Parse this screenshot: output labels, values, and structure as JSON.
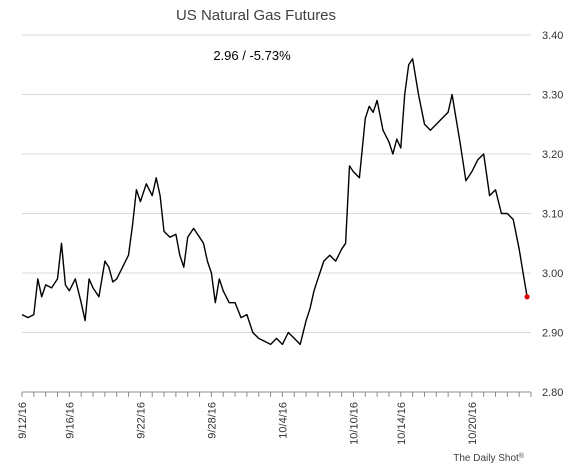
{
  "chart_data": {
    "type": "line",
    "title": "US Natural Gas Futures",
    "annotation": "2.96  /  -5.73%",
    "credit": "The Daily Shot",
    "credit_mark": "®",
    "xlabel": "",
    "ylabel": "",
    "ylim": [
      2.8,
      3.4
    ],
    "yticks": [
      "2.80",
      "2.90",
      "3.00",
      "3.10",
      "3.20",
      "3.30",
      "3.40"
    ],
    "xlim": [
      "2016-09-12",
      "2016-10-25"
    ],
    "xticks": [
      {
        "label": "9/12/16",
        "date": "2016-09-12"
      },
      {
        "label": "9/16/16",
        "date": "2016-09-16"
      },
      {
        "label": "9/22/16",
        "date": "2016-09-22"
      },
      {
        "label": "9/28/16",
        "date": "2016-09-28"
      },
      {
        "label": "10/4/16",
        "date": "2016-10-04"
      },
      {
        "label": "10/10/16",
        "date": "2016-10-10"
      },
      {
        "label": "10/14/16",
        "date": "2016-10-14"
      },
      {
        "label": "10/20/16",
        "date": "2016-10-20"
      }
    ],
    "grid": true,
    "y_axis_side": "right",
    "last_point_color": "#e00000",
    "series": [
      {
        "values": [
          [
            "2016-09-12",
            2.93
          ],
          [
            "2016-09-12",
            2.925
          ],
          [
            "2016-09-13",
            2.93
          ],
          [
            "2016-09-13",
            2.99
          ],
          [
            "2016-09-13",
            2.96
          ],
          [
            "2016-09-14",
            2.98
          ],
          [
            "2016-09-14",
            2.975
          ],
          [
            "2016-09-15",
            2.99
          ],
          [
            "2016-09-15",
            3.05
          ],
          [
            "2016-09-15",
            2.98
          ],
          [
            "2016-09-16",
            2.97
          ],
          [
            "2016-09-16",
            2.99
          ],
          [
            "2016-09-17",
            2.95
          ],
          [
            "2016-09-17",
            2.92
          ],
          [
            "2016-09-17",
            2.99
          ],
          [
            "2016-09-18",
            2.975
          ],
          [
            "2016-09-18",
            2.96
          ],
          [
            "2016-09-19",
            3.02
          ],
          [
            "2016-09-19",
            3.01
          ],
          [
            "2016-09-19",
            2.985
          ],
          [
            "2016-09-20",
            2.99
          ],
          [
            "2016-09-20",
            3.01
          ],
          [
            "2016-09-21",
            3.03
          ],
          [
            "2016-09-21",
            3.08
          ],
          [
            "2016-09-21",
            3.14
          ],
          [
            "2016-09-22",
            3.12
          ],
          [
            "2016-09-22",
            3.15
          ],
          [
            "2016-09-23",
            3.13
          ],
          [
            "2016-09-23",
            3.16
          ],
          [
            "2016-09-23",
            3.13
          ],
          [
            "2016-09-24",
            3.07
          ],
          [
            "2016-09-24",
            3.06
          ],
          [
            "2016-09-25",
            3.065
          ],
          [
            "2016-09-25",
            3.03
          ],
          [
            "2016-09-25",
            3.01
          ],
          [
            "2016-09-26",
            3.06
          ],
          [
            "2016-09-26",
            3.075
          ],
          [
            "2016-09-27",
            3.06
          ],
          [
            "2016-09-27",
            3.05
          ],
          [
            "2016-09-27",
            3.02
          ],
          [
            "2016-09-28",
            3.0
          ],
          [
            "2016-09-28",
            2.95
          ],
          [
            "2016-09-28",
            2.99
          ],
          [
            "2016-09-29",
            2.97
          ],
          [
            "2016-09-29",
            2.95
          ],
          [
            "2016-09-30",
            2.95
          ],
          [
            "2016-09-30",
            2.925
          ],
          [
            "2016-10-01",
            2.93
          ],
          [
            "2016-10-01",
            2.9
          ],
          [
            "2016-10-02",
            2.89
          ],
          [
            "2016-10-02",
            2.885
          ],
          [
            "2016-10-03",
            2.88
          ],
          [
            "2016-10-03",
            2.89
          ],
          [
            "2016-10-04",
            2.88
          ],
          [
            "2016-10-04",
            2.9
          ],
          [
            "2016-10-05",
            2.89
          ],
          [
            "2016-10-05",
            2.88
          ],
          [
            "2016-10-06",
            2.92
          ],
          [
            "2016-10-06",
            2.94
          ],
          [
            "2016-10-06",
            2.97
          ],
          [
            "2016-10-07",
            2.99
          ],
          [
            "2016-10-07",
            3.02
          ],
          [
            "2016-10-08",
            3.03
          ],
          [
            "2016-10-08",
            3.02
          ],
          [
            "2016-10-09",
            3.04
          ],
          [
            "2016-10-09",
            3.05
          ],
          [
            "2016-10-09",
            3.18
          ],
          [
            "2016-10-10",
            3.17
          ],
          [
            "2016-10-10",
            3.16
          ],
          [
            "2016-10-11",
            3.26
          ],
          [
            "2016-10-11",
            3.28
          ],
          [
            "2016-10-11",
            3.27
          ],
          [
            "2016-10-12",
            3.29
          ],
          [
            "2016-10-12",
            3.24
          ],
          [
            "2016-10-13",
            3.22
          ],
          [
            "2016-10-13",
            3.2
          ],
          [
            "2016-10-13",
            3.225
          ],
          [
            "2016-10-14",
            3.21
          ],
          [
            "2016-10-14",
            3.3
          ],
          [
            "2016-10-14",
            3.35
          ],
          [
            "2016-10-15",
            3.36
          ],
          [
            "2016-10-15",
            3.3
          ],
          [
            "2016-10-16",
            3.25
          ],
          [
            "2016-10-16",
            3.24
          ],
          [
            "2016-10-17",
            3.25
          ],
          [
            "2016-10-17",
            3.26
          ],
          [
            "2016-10-18",
            3.27
          ],
          [
            "2016-10-18",
            3.3
          ],
          [
            "2016-10-18",
            3.26
          ],
          [
            "2016-10-19",
            3.22
          ],
          [
            "2016-10-19",
            3.155
          ],
          [
            "2016-10-20",
            3.17
          ],
          [
            "2016-10-20",
            3.19
          ],
          [
            "2016-10-21",
            3.2
          ],
          [
            "2016-10-21",
            3.13
          ],
          [
            "2016-10-22",
            3.14
          ],
          [
            "2016-10-22",
            3.1
          ],
          [
            "2016-10-23",
            3.1
          ],
          [
            "2016-10-23",
            3.09
          ],
          [
            "2016-10-24",
            3.04
          ],
          [
            "2016-10-24",
            3.0
          ],
          [
            "2016-10-24",
            2.96
          ]
        ]
      }
    ]
  }
}
